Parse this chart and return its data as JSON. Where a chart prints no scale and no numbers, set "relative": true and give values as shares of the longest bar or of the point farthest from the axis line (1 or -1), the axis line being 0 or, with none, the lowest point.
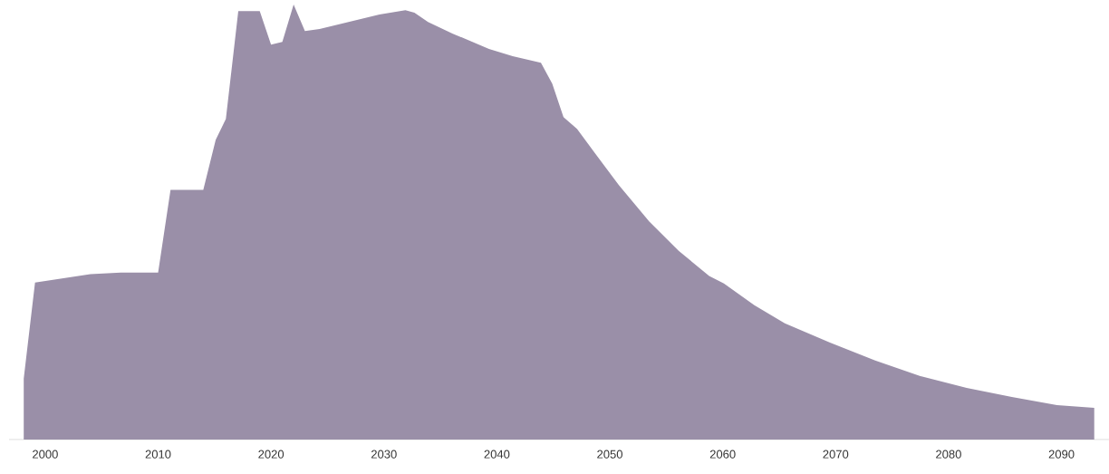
{
  "chart_data": {
    "type": "area",
    "relative": true,
    "color": "#9a8fa8",
    "x": [
      1998.1,
      1999.1,
      2004.0,
      2006.7,
      2010.0,
      2011.1,
      2014.0,
      2015.1,
      2016.0,
      2017.1,
      2019.0,
      2020.0,
      2021.0,
      2022.0,
      2023.0,
      2024.3,
      2029.6,
      2031.9,
      2032.7,
      2033.9,
      2036.1,
      2039.3,
      2041.4,
      2043.9,
      2044.9,
      2045.9,
      2047.1,
      2048.7,
      2050.8,
      2053.5,
      2056.1,
      2058.8,
      2060.1,
      2062.8,
      2065.5,
      2069.5,
      2073.5,
      2077.5,
      2081.6,
      2085.6,
      2089.6,
      2092.9
    ],
    "values": [
      0.14,
      0.361,
      0.38,
      0.384,
      0.384,
      0.574,
      0.574,
      0.689,
      0.737,
      0.985,
      0.985,
      0.908,
      0.914,
      1.0,
      0.939,
      0.944,
      0.977,
      0.987,
      0.981,
      0.96,
      0.933,
      0.898,
      0.881,
      0.866,
      0.818,
      0.741,
      0.714,
      0.658,
      0.585,
      0.501,
      0.434,
      0.376,
      0.359,
      0.309,
      0.267,
      0.223,
      0.182,
      0.146,
      0.119,
      0.098,
      0.079,
      0.073
    ],
    "xlim": [
      1996.8,
      2094.2
    ],
    "xticks": [
      2000,
      2010,
      2020,
      2030,
      2040,
      2050,
      2060,
      2070,
      2080,
      2090
    ]
  }
}
